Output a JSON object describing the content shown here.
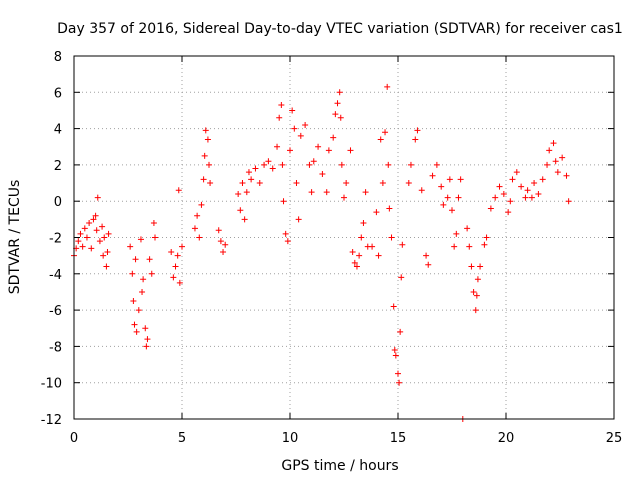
{
  "chart_data": {
    "type": "scatter",
    "title": "Day 357 of 2016, Sidereal Day-to-day VTEC variation (SDTVAR) for receiver cas1",
    "xlabel": "GPS time / hours",
    "ylabel": "SDTVAR / TECUs",
    "xlim": [
      0,
      25
    ],
    "ylim": [
      -12,
      8
    ],
    "xticks": [
      "0",
      "5",
      "10",
      "15",
      "20",
      "25"
    ],
    "yticks": [
      "8",
      "6",
      "4",
      "2",
      "0",
      "-2",
      "-4",
      "-6",
      "-8",
      "-10",
      "-12"
    ],
    "grid": true,
    "marker": "plus",
    "color": "#ff0000",
    "series": [
      {
        "name": "SDTVAR",
        "points": [
          [
            0.0,
            -3.0
          ],
          [
            0.1,
            -2.6
          ],
          [
            0.2,
            -2.2
          ],
          [
            0.3,
            -1.8
          ],
          [
            0.4,
            -2.5
          ],
          [
            0.5,
            -1.5
          ],
          [
            0.6,
            -2.0
          ],
          [
            0.7,
            -1.2
          ],
          [
            0.8,
            -2.6
          ],
          [
            0.9,
            -1.0
          ],
          [
            1.0,
            -0.8
          ],
          [
            1.05,
            -1.6
          ],
          [
            1.1,
            0.2
          ],
          [
            1.2,
            -2.2
          ],
          [
            1.3,
            -1.4
          ],
          [
            1.35,
            -3.0
          ],
          [
            1.4,
            -2.0
          ],
          [
            1.5,
            -3.6
          ],
          [
            1.55,
            -2.8
          ],
          [
            1.6,
            -1.8
          ],
          [
            2.6,
            -2.5
          ],
          [
            2.7,
            -4.0
          ],
          [
            2.75,
            -5.5
          ],
          [
            2.8,
            -6.8
          ],
          [
            2.85,
            -3.2
          ],
          [
            2.9,
            -7.2
          ],
          [
            3.0,
            -6.0
          ],
          [
            3.1,
            -2.1
          ],
          [
            3.15,
            -5.0
          ],
          [
            3.2,
            -4.3
          ],
          [
            3.3,
            -7.0
          ],
          [
            3.35,
            -8.0
          ],
          [
            3.4,
            -7.6
          ],
          [
            3.5,
            -3.2
          ],
          [
            3.6,
            -4.0
          ],
          [
            3.7,
            -1.2
          ],
          [
            3.75,
            -2.0
          ],
          [
            4.5,
            -2.8
          ],
          [
            4.6,
            -4.2
          ],
          [
            4.7,
            -3.6
          ],
          [
            4.8,
            -3.0
          ],
          [
            4.9,
            -4.5
          ],
          [
            5.0,
            -2.5
          ],
          [
            4.85,
            0.6
          ],
          [
            5.6,
            -1.5
          ],
          [
            5.7,
            -0.8
          ],
          [
            5.8,
            -2.0
          ],
          [
            5.9,
            -0.2
          ],
          [
            6.0,
            1.2
          ],
          [
            6.05,
            2.5
          ],
          [
            6.1,
            3.9
          ],
          [
            6.2,
            3.4
          ],
          [
            6.25,
            2.0
          ],
          [
            6.3,
            1.0
          ],
          [
            6.7,
            -1.6
          ],
          [
            6.8,
            -2.2
          ],
          [
            6.9,
            -2.8
          ],
          [
            7.0,
            -2.4
          ],
          [
            7.6,
            0.4
          ],
          [
            7.7,
            -0.5
          ],
          [
            7.8,
            1.0
          ],
          [
            7.9,
            -1.0
          ],
          [
            8.0,
            0.5
          ],
          [
            8.1,
            1.6
          ],
          [
            8.2,
            1.2
          ],
          [
            8.4,
            1.8
          ],
          [
            8.6,
            1.0
          ],
          [
            8.8,
            2.0
          ],
          [
            9.0,
            2.2
          ],
          [
            9.2,
            1.8
          ],
          [
            9.4,
            3.0
          ],
          [
            9.5,
            4.6
          ],
          [
            9.6,
            5.3
          ],
          [
            9.65,
            2.0
          ],
          [
            9.7,
            0.0
          ],
          [
            9.8,
            -1.8
          ],
          [
            9.9,
            -2.2
          ],
          [
            10.0,
            2.8
          ],
          [
            10.1,
            5.0
          ],
          [
            10.2,
            4.0
          ],
          [
            10.3,
            1.0
          ],
          [
            10.4,
            -1.0
          ],
          [
            10.5,
            3.6
          ],
          [
            10.7,
            4.2
          ],
          [
            10.9,
            2.0
          ],
          [
            11.0,
            0.5
          ],
          [
            11.1,
            2.2
          ],
          [
            11.3,
            3.0
          ],
          [
            11.5,
            1.5
          ],
          [
            11.7,
            0.5
          ],
          [
            11.8,
            2.8
          ],
          [
            12.0,
            3.5
          ],
          [
            12.1,
            4.8
          ],
          [
            12.2,
            5.4
          ],
          [
            12.3,
            6.0
          ],
          [
            12.35,
            4.6
          ],
          [
            12.4,
            2.0
          ],
          [
            12.5,
            0.2
          ],
          [
            12.6,
            1.0
          ],
          [
            12.8,
            2.8
          ],
          [
            12.9,
            -2.8
          ],
          [
            13.0,
            -3.4
          ],
          [
            13.1,
            -3.6
          ],
          [
            13.2,
            -3.0
          ],
          [
            13.3,
            -2.0
          ],
          [
            13.4,
            -1.2
          ],
          [
            13.5,
            0.5
          ],
          [
            13.6,
            -2.5
          ],
          [
            13.8,
            -2.5
          ],
          [
            14.0,
            -0.6
          ],
          [
            14.1,
            -3.0
          ],
          [
            14.2,
            3.4
          ],
          [
            14.3,
            1.0
          ],
          [
            14.4,
            3.8
          ],
          [
            14.5,
            6.3
          ],
          [
            14.55,
            2.0
          ],
          [
            14.6,
            -0.4
          ],
          [
            14.7,
            -2.0
          ],
          [
            14.8,
            -5.8
          ],
          [
            14.85,
            -8.2
          ],
          [
            14.9,
            -8.5
          ],
          [
            15.0,
            -9.5
          ],
          [
            15.05,
            -10.0
          ],
          [
            15.1,
            -7.2
          ],
          [
            15.15,
            -4.2
          ],
          [
            15.2,
            -2.4
          ],
          [
            15.5,
            1.0
          ],
          [
            15.6,
            2.0
          ],
          [
            15.8,
            3.4
          ],
          [
            15.9,
            3.9
          ],
          [
            16.1,
            0.6
          ],
          [
            16.3,
            -3.0
          ],
          [
            16.4,
            -3.5
          ],
          [
            16.6,
            1.4
          ],
          [
            16.8,
            2.0
          ],
          [
            17.0,
            0.8
          ],
          [
            17.1,
            -0.2
          ],
          [
            17.3,
            0.2
          ],
          [
            17.4,
            1.2
          ],
          [
            17.5,
            -0.5
          ],
          [
            17.6,
            -2.5
          ],
          [
            17.7,
            -1.8
          ],
          [
            17.8,
            0.2
          ],
          [
            17.9,
            1.2
          ],
          [
            18.0,
            -12.0
          ],
          [
            18.2,
            -1.5
          ],
          [
            18.3,
            -2.5
          ],
          [
            18.4,
            -3.6
          ],
          [
            18.5,
            -5.0
          ],
          [
            18.6,
            -6.0
          ],
          [
            18.65,
            -5.2
          ],
          [
            18.7,
            -4.3
          ],
          [
            18.8,
            -3.6
          ],
          [
            19.0,
            -2.4
          ],
          [
            19.1,
            -2.0
          ],
          [
            19.3,
            -0.4
          ],
          [
            19.5,
            0.2
          ],
          [
            19.7,
            0.8
          ],
          [
            19.9,
            0.4
          ],
          [
            20.1,
            -0.6
          ],
          [
            20.2,
            0.0
          ],
          [
            20.3,
            1.2
          ],
          [
            20.5,
            1.6
          ],
          [
            20.7,
            0.8
          ],
          [
            20.9,
            0.2
          ],
          [
            21.0,
            0.6
          ],
          [
            21.2,
            0.2
          ],
          [
            21.3,
            1.0
          ],
          [
            21.5,
            0.4
          ],
          [
            21.7,
            1.2
          ],
          [
            21.9,
            2.0
          ],
          [
            22.0,
            2.8
          ],
          [
            22.2,
            3.2
          ],
          [
            22.3,
            2.2
          ],
          [
            22.4,
            1.6
          ],
          [
            22.6,
            2.4
          ],
          [
            22.8,
            1.4
          ],
          [
            22.9,
            0.0
          ]
        ]
      }
    ]
  }
}
